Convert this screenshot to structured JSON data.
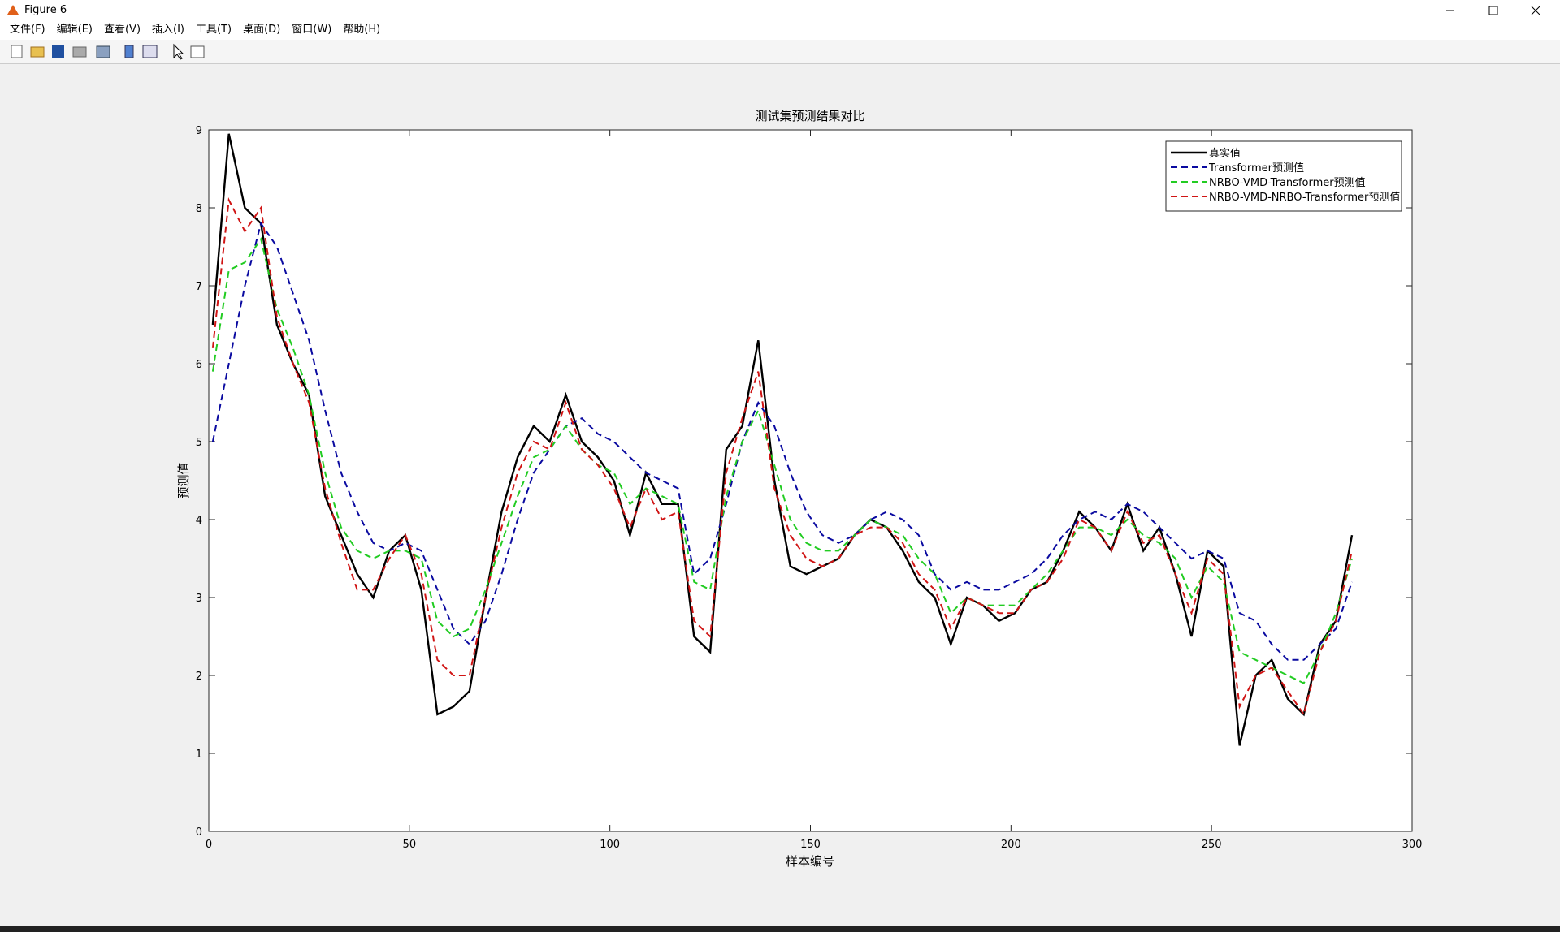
{
  "window": {
    "title": "Figure 6"
  },
  "menu": [
    "文件(F)",
    "编辑(E)",
    "查看(V)",
    "插入(I)",
    "工具(T)",
    "桌面(D)",
    "窗口(W)",
    "帮助(H)"
  ],
  "chart_data": {
    "type": "line",
    "title": "测试集预测结果对比",
    "x_label": "样本编号",
    "y_label": "预测值",
    "xlim": [
      0,
      300
    ],
    "xticks": [
      0,
      50,
      100,
      150,
      200,
      250,
      300
    ],
    "ylim": [
      0,
      9
    ],
    "yticks": [
      0,
      1,
      2,
      3,
      4,
      5,
      6,
      7,
      8,
      9
    ],
    "legend": "upper right",
    "x": [
      1,
      5,
      9,
      13,
      17,
      21,
      25,
      29,
      33,
      37,
      41,
      45,
      49,
      53,
      57,
      61,
      65,
      69,
      73,
      77,
      81,
      85,
      89,
      93,
      97,
      101,
      105,
      109,
      113,
      117,
      121,
      125,
      129,
      133,
      137,
      141,
      145,
      149,
      153,
      157,
      161,
      165,
      169,
      173,
      177,
      181,
      185,
      189,
      193,
      197,
      201,
      205,
      209,
      213,
      217,
      221,
      225,
      229,
      233,
      237,
      241,
      245,
      249,
      253,
      257,
      261,
      265,
      269,
      273,
      277,
      281,
      285
    ],
    "series": [
      {
        "name": "真实值",
        "color": "#000000",
        "dash": false,
        "values": [
          6.5,
          8.95,
          8.0,
          7.8,
          6.5,
          6.0,
          5.6,
          4.3,
          3.8,
          3.3,
          3.0,
          3.6,
          3.8,
          3.1,
          1.5,
          1.6,
          1.8,
          3.0,
          4.1,
          4.8,
          5.2,
          5.0,
          5.6,
          5.0,
          4.8,
          4.5,
          3.8,
          4.6,
          4.2,
          4.2,
          2.5,
          2.3,
          4.9,
          5.2,
          6.3,
          4.5,
          3.4,
          3.3,
          3.4,
          3.5,
          3.8,
          4.0,
          3.9,
          3.6,
          3.2,
          3.0,
          2.4,
          3.0,
          2.9,
          2.7,
          2.8,
          3.1,
          3.2,
          3.6,
          4.1,
          3.9,
          3.6,
          4.2,
          3.6,
          3.9,
          3.3,
          2.5,
          3.6,
          3.4,
          1.1,
          2.0,
          2.2,
          1.7,
          1.5,
          2.4,
          2.7,
          3.8
        ]
      },
      {
        "name": "Transformer预测值",
        "color": "#0a0aa0",
        "dash": true,
        "values": [
          5.0,
          6.0,
          7.0,
          7.8,
          7.5,
          6.9,
          6.3,
          5.4,
          4.6,
          4.1,
          3.7,
          3.6,
          3.7,
          3.6,
          3.1,
          2.6,
          2.4,
          2.7,
          3.3,
          4.0,
          4.6,
          4.9,
          5.2,
          5.3,
          5.1,
          5.0,
          4.8,
          4.6,
          4.5,
          4.4,
          3.3,
          3.5,
          4.2,
          5.0,
          5.5,
          5.2,
          4.6,
          4.1,
          3.8,
          3.7,
          3.8,
          4.0,
          4.1,
          4.0,
          3.8,
          3.3,
          3.1,
          3.2,
          3.1,
          3.1,
          3.2,
          3.3,
          3.5,
          3.8,
          4.0,
          4.1,
          4.0,
          4.2,
          4.1,
          3.9,
          3.7,
          3.5,
          3.6,
          3.5,
          2.8,
          2.7,
          2.4,
          2.2,
          2.2,
          2.4,
          2.6,
          3.2
        ]
      },
      {
        "name": "NRBO-VMD-Transformer预测值",
        "color": "#22cc22",
        "dash": true,
        "values": [
          5.9,
          7.2,
          7.3,
          7.6,
          6.7,
          6.2,
          5.6,
          4.6,
          3.9,
          3.6,
          3.5,
          3.6,
          3.6,
          3.5,
          2.7,
          2.5,
          2.6,
          3.1,
          3.7,
          4.3,
          4.8,
          4.9,
          5.2,
          4.9,
          4.7,
          4.6,
          4.2,
          4.4,
          4.3,
          4.2,
          3.2,
          3.1,
          4.3,
          5.0,
          5.4,
          4.7,
          4.0,
          3.7,
          3.6,
          3.6,
          3.8,
          4.0,
          3.9,
          3.8,
          3.5,
          3.3,
          2.8,
          3.0,
          2.9,
          2.9,
          2.9,
          3.1,
          3.3,
          3.6,
          3.9,
          3.9,
          3.8,
          4.0,
          3.8,
          3.7,
          3.5,
          3.0,
          3.4,
          3.2,
          2.3,
          2.2,
          2.1,
          2.0,
          1.9,
          2.3,
          2.8,
          3.5
        ]
      },
      {
        "name": "NRBO-VMD-NRBO-Transformer预测值",
        "color": "#d01515",
        "dash": true,
        "values": [
          6.2,
          8.1,
          7.7,
          8.0,
          6.6,
          6.0,
          5.5,
          4.4,
          3.7,
          3.1,
          3.1,
          3.5,
          3.8,
          3.3,
          2.2,
          2.0,
          2.0,
          3.0,
          3.9,
          4.6,
          5.0,
          4.9,
          5.5,
          4.9,
          4.7,
          4.4,
          3.9,
          4.4,
          4.0,
          4.1,
          2.7,
          2.5,
          4.6,
          5.3,
          5.9,
          4.4,
          3.8,
          3.5,
          3.4,
          3.5,
          3.8,
          3.9,
          3.9,
          3.7,
          3.3,
          3.1,
          2.6,
          3.0,
          2.9,
          2.8,
          2.8,
          3.1,
          3.2,
          3.5,
          4.0,
          3.9,
          3.6,
          4.1,
          3.7,
          3.8,
          3.3,
          2.8,
          3.5,
          3.3,
          1.6,
          2.0,
          2.1,
          1.8,
          1.5,
          2.3,
          2.7,
          3.6
        ]
      }
    ]
  }
}
